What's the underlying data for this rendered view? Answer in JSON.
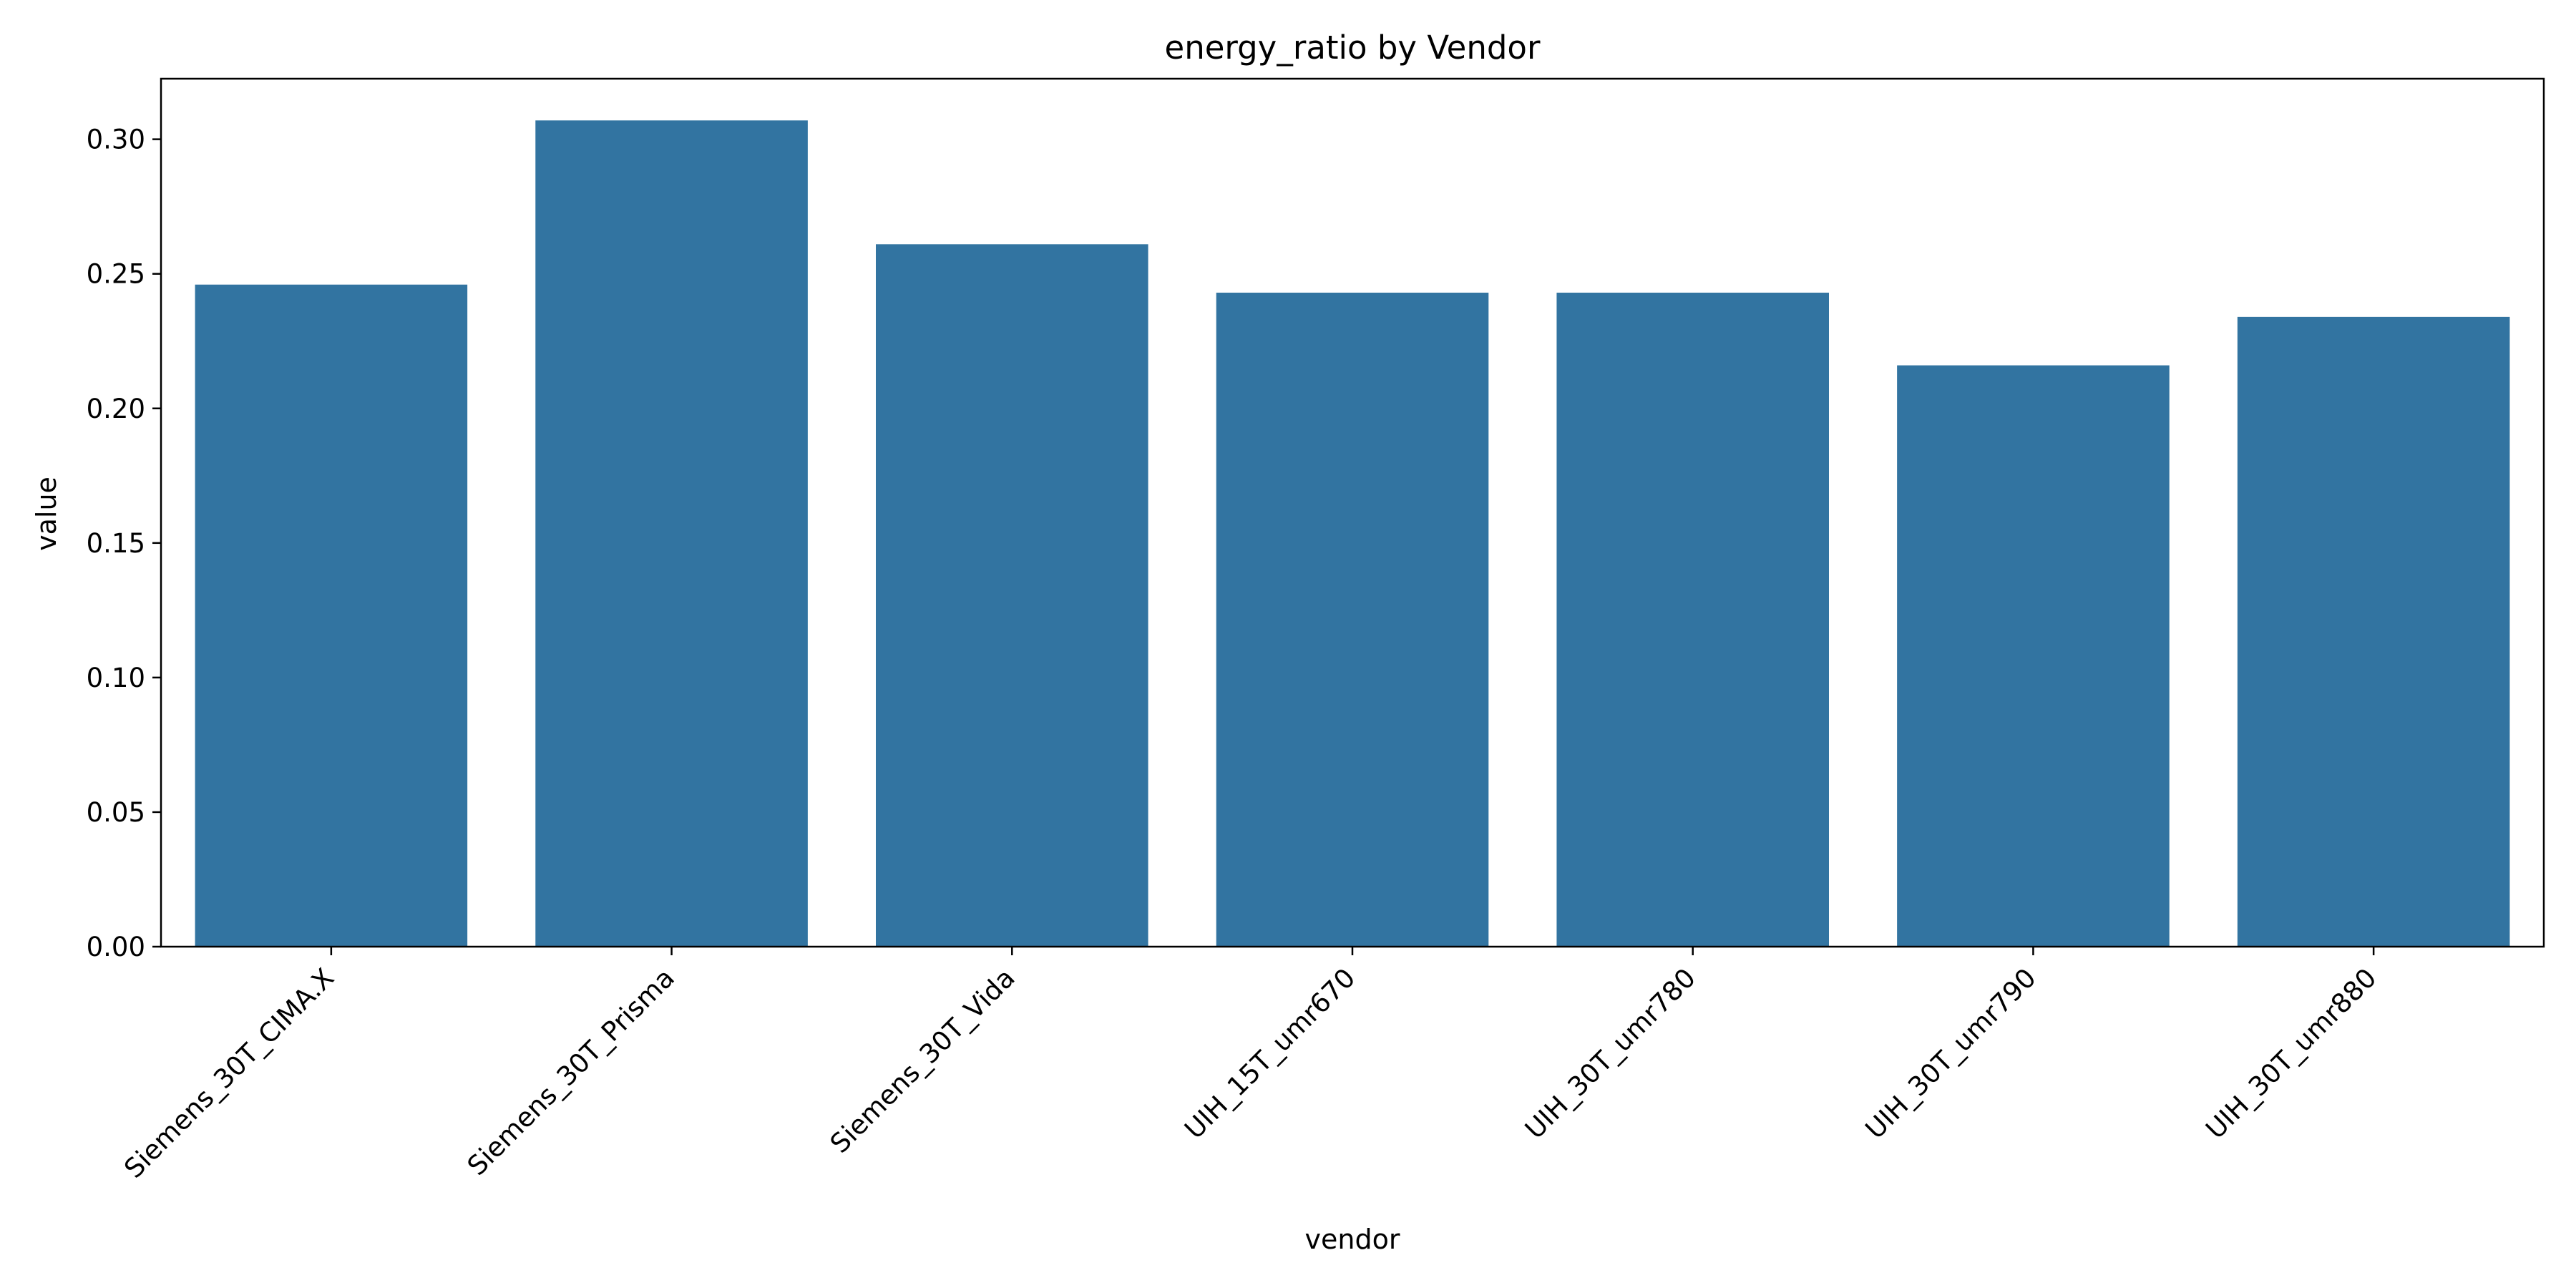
{
  "chart_data": {
    "type": "bar",
    "title": "energy_ratio by Vendor",
    "xlabel": "vendor",
    "ylabel": "value",
    "categories": [
      "Siemens_30T_CIMA.X",
      "Siemens_30T_Prisma",
      "Siemens_30T_Vida",
      "UIH_15T_umr670",
      "UIH_30T_umr780",
      "UIH_30T_umr790",
      "UIH_30T_umr880"
    ],
    "values": [
      0.246,
      0.307,
      0.261,
      0.243,
      0.243,
      0.216,
      0.234
    ],
    "ylim": [
      0,
      0.3225
    ],
    "yticks": [
      0.0,
      0.05,
      0.1,
      0.15,
      0.2,
      0.25,
      0.3
    ],
    "ytick_labels": [
      "0.00",
      "0.05",
      "0.10",
      "0.15",
      "0.20",
      "0.25",
      "0.30"
    ],
    "bar_color": "#3274a1",
    "grid": false,
    "legend": "none"
  }
}
